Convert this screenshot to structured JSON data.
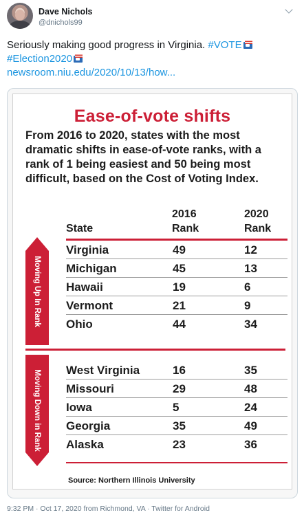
{
  "tweet": {
    "display_name": "Dave Nichols",
    "handle": "@dnichols99",
    "text_line1": "Seriously making good progress in Virginia.",
    "hashtag_vote": "#VOTE",
    "hashtag_election": "#Election2020",
    "link": "newsroom.niu.edu/2020/10/13/how...",
    "timestamp": "9:32 PM · Oct 17, 2020 from Richmond, VA · Twitter for Android",
    "emoji_icon": "ballot-box-icon"
  },
  "graphic": {
    "title": "Ease-of-vote shifts",
    "description": "From 2016 to 2020, states with the most dramatic shifts in ease-of-vote ranks, with a rank of 1 being easiest and 50 being most difficult, based on the Cost of Voting Index.",
    "col_state": "State",
    "col_2016_year": "2016",
    "col_2016_rank": "Rank",
    "col_2020_year": "2020",
    "col_2020_rank": "Rank",
    "up_label": "Moving Up In Rank",
    "down_label": "Moving Down in Rank",
    "up_rows": [
      {
        "state": "Virginia",
        "r2016": "49",
        "r2020": "12"
      },
      {
        "state": "Michigan",
        "r2016": "45",
        "r2020": "13"
      },
      {
        "state": "Hawaii",
        "r2016": "19",
        "r2020": "6"
      },
      {
        "state": "Vermont",
        "r2016": "21",
        "r2020": "9"
      },
      {
        "state": "Ohio",
        "r2016": "44",
        "r2020": "34"
      }
    ],
    "down_rows": [
      {
        "state": "West Virginia",
        "r2016": "16",
        "r2020": "35"
      },
      {
        "state": "Missouri",
        "r2016": "29",
        "r2020": "48"
      },
      {
        "state": "Iowa",
        "r2016": "5",
        "r2020": "24"
      },
      {
        "state": "Georgia",
        "r2016": "35",
        "r2020": "49"
      },
      {
        "state": "Alaska",
        "r2016": "23",
        "r2020": "36"
      }
    ],
    "source": "Source: Northern Illinois University",
    "accent_color": "#cc1f36"
  }
}
